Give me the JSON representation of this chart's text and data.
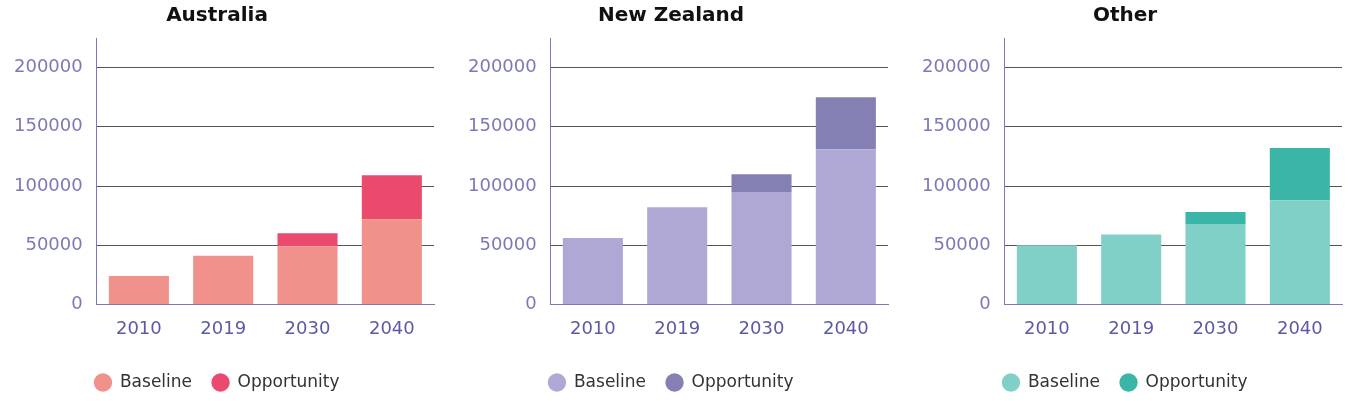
{
  "chart_data": [
    {
      "type": "bar",
      "title": "Australia",
      "categories": [
        "2010",
        "2019",
        "2030",
        "2040"
      ],
      "stacked": true,
      "ylim": [
        0,
        225000
      ],
      "yticks": [
        0,
        50000,
        100000,
        150000,
        200000
      ],
      "grid": "y",
      "legend": "bottom",
      "series": [
        {
          "name": "Baseline",
          "color": "#f0918b",
          "values": [
            24000,
            41000,
            49000,
            72000
          ]
        },
        {
          "name": "Opportunity",
          "color": "#eb4a6f",
          "values": [
            0,
            0,
            11000,
            37000
          ]
        }
      ]
    },
    {
      "type": "bar",
      "title": "New Zealand",
      "categories": [
        "2010",
        "2019",
        "2030",
        "2040"
      ],
      "stacked": true,
      "ylim": [
        0,
        225000
      ],
      "yticks": [
        0,
        50000,
        100000,
        150000,
        200000
      ],
      "grid": "y",
      "legend": "bottom",
      "series": [
        {
          "name": "Baseline",
          "color": "#b0a8d4",
          "values": [
            56000,
            82000,
            95000,
            131000
          ]
        },
        {
          "name": "Opportunity",
          "color": "#8480b4",
          "values": [
            0,
            0,
            15000,
            44000
          ]
        }
      ]
    },
    {
      "type": "bar",
      "title": "Other",
      "categories": [
        "2010",
        "2019",
        "2030",
        "2040"
      ],
      "stacked": true,
      "ylim": [
        0,
        225000
      ],
      "yticks": [
        0,
        50000,
        100000,
        150000,
        200000
      ],
      "grid": "y",
      "legend": "bottom",
      "series": [
        {
          "name": "Baseline",
          "color": "#80d0c8",
          "values": [
            50000,
            59000,
            68000,
            88000
          ]
        },
        {
          "name": "Opportunity",
          "color": "#3bb5a8",
          "values": [
            0,
            0,
            10000,
            44000
          ]
        }
      ]
    }
  ]
}
